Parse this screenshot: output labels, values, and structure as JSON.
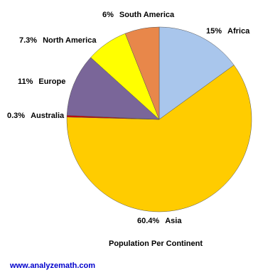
{
  "chart_data": {
    "type": "pie",
    "title": "Population Per Continent",
    "source": "www.analyzemath.com",
    "categories": [
      "Africa",
      "Asia",
      "Australia",
      "Europe",
      "North America",
      "South America"
    ],
    "values": [
      15,
      60.4,
      0.3,
      11,
      7.3,
      6
    ],
    "value_labels": [
      "15%",
      "60.4%",
      "0.3%",
      "11%",
      "7.3%",
      "6%"
    ],
    "colors": [
      "#a9c6ec",
      "#ffcc00",
      "#d40000",
      "#7a6699",
      "#ffff00",
      "#e8874a"
    ]
  }
}
